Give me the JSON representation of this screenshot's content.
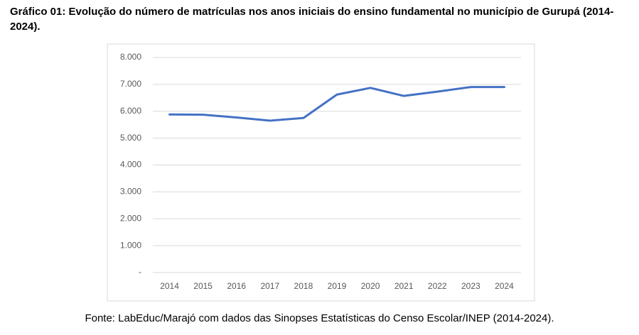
{
  "chart_data": {
    "type": "line",
    "title": "Gráfico 01: Evolução do número de matrículas nos anos iniciais do ensino fundamental no município de Gurupá (2014-2024).",
    "categories": [
      "2014",
      "2015",
      "2016",
      "2017",
      "2018",
      "2019",
      "2020",
      "2021",
      "2022",
      "2023",
      "2024"
    ],
    "values": [
      5880,
      5870,
      5770,
      5650,
      5750,
      6620,
      6870,
      6570,
      6730,
      6900,
      6900
    ],
    "color": "#4472c4",
    "ylim": [
      0,
      8000
    ],
    "yticks": [
      {
        "value": 0,
        "label": "-"
      },
      {
        "value": 1000,
        "label": "1.000"
      },
      {
        "value": 2000,
        "label": "2.000"
      },
      {
        "value": 3000,
        "label": "3.000"
      },
      {
        "value": 4000,
        "label": "4.000"
      },
      {
        "value": 5000,
        "label": "5.000"
      },
      {
        "value": 6000,
        "label": "6.000"
      },
      {
        "value": 7000,
        "label": "7.000"
      },
      {
        "value": 8000,
        "label": "8.000"
      }
    ],
    "grid": true,
    "source": "Fonte: LabEduc/Marajó com dados das Sinopses Estatísticas do Censo Escolar/INEP (2014-2024)."
  }
}
